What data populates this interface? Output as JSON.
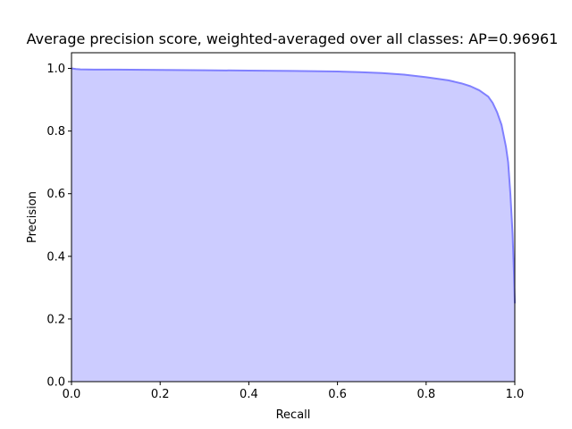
{
  "chart_data": {
    "type": "area",
    "title": "Average precision score, weighted-averaged over all classes: AP=0.96961",
    "xlabel": "Recall",
    "ylabel": "Precision",
    "xlim": [
      0.0,
      1.0
    ],
    "ylim": [
      0.0,
      1.05
    ],
    "xticks": [
      "0.0",
      "0.2",
      "0.4",
      "0.6",
      "0.8",
      "1.0"
    ],
    "yticks": [
      "0.0",
      "0.2",
      "0.4",
      "0.6",
      "0.8",
      "1.0"
    ],
    "grid": false,
    "legend": "none",
    "colors": {
      "fill": "#ccccff",
      "line": "#8080ff",
      "axes": "#000000",
      "background": "#ffffff"
    },
    "series": [
      {
        "x": [
          0.0,
          0.01,
          0.02,
          0.05,
          0.1,
          0.2,
          0.3,
          0.4,
          0.5,
          0.6,
          0.65,
          0.7,
          0.75,
          0.8,
          0.85,
          0.88,
          0.9,
          0.92,
          0.94,
          0.95,
          0.96,
          0.97,
          0.98,
          0.985,
          0.99,
          0.995,
          0.998,
          1.0
        ],
        "y": [
          1.0,
          0.998,
          0.997,
          0.996,
          0.996,
          0.995,
          0.994,
          0.993,
          0.992,
          0.99,
          0.988,
          0.985,
          0.98,
          0.972,
          0.962,
          0.952,
          0.943,
          0.93,
          0.91,
          0.89,
          0.86,
          0.82,
          0.75,
          0.7,
          0.6,
          0.47,
          0.35,
          0.25
        ]
      }
    ]
  }
}
